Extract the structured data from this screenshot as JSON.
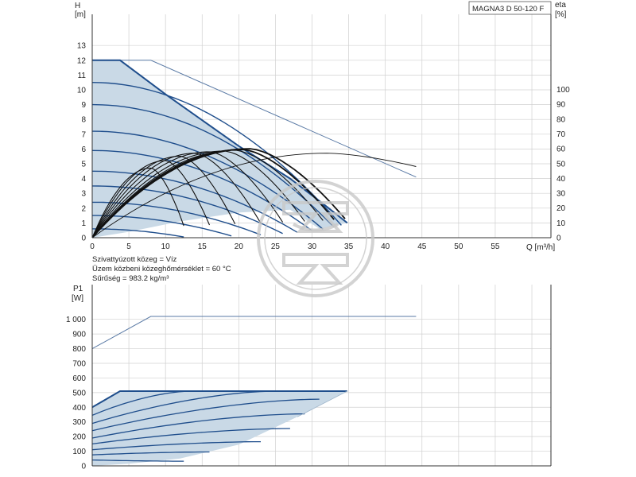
{
  "model": "MAGNA3 D 50-120 F",
  "info": {
    "line1": "Szivattyúzott közeg = Víz",
    "line2": "Üzem közbeni közeghőmérséklet = 60 °C",
    "line3": "Sűrűség = 983.2 kg/m³"
  },
  "colors": {
    "curve": "#1f4e8c",
    "area": "#c9d9e6",
    "eta": "#111111",
    "grid": "#d0d0d0",
    "watermark": "#c8c8c8"
  },
  "watermark": "seal-logo",
  "chart_data": [
    {
      "type": "line",
      "id": "head",
      "ylabel": "H",
      "yunit": "[m]",
      "y2label": "eta",
      "y2unit": "[%]",
      "xlabel": "Q [m³/h]",
      "xlim": [
        0,
        62
      ],
      "ylim": [
        0,
        13
      ],
      "y2lim": [
        0,
        100
      ],
      "xticks": [
        0,
        5,
        10,
        15,
        20,
        25,
        30,
        35,
        40,
        45,
        50,
        55,
        60
      ],
      "yticks": [
        0,
        1,
        2,
        3,
        4,
        5,
        6,
        7,
        8,
        9,
        10,
        11,
        12,
        13
      ],
      "y2ticks": [
        0,
        10,
        20,
        30,
        40,
        50,
        60,
        70,
        80,
        90,
        100
      ],
      "grid": true,
      "max_curve": [
        [
          0,
          12.0
        ],
        [
          3.8,
          12.0
        ],
        [
          10,
          9.7
        ],
        [
          20,
          6.2
        ],
        [
          27,
          4.0
        ],
        [
          32,
          2.1
        ],
        [
          34.8,
          1.0
        ]
      ],
      "lower_bound": [
        [
          0,
          0
        ],
        [
          5,
          0.4
        ],
        [
          12,
          1.1
        ],
        [
          20,
          1.7
        ],
        [
          27,
          1.9
        ],
        [
          31,
          0.6
        ]
      ],
      "control_curves": [
        {
          "h0": 10.5,
          "qmax": 34
        },
        {
          "h0": 9.0,
          "qmax": 33
        },
        {
          "h0": 7.2,
          "qmax": 31.5
        },
        {
          "h0": 5.9,
          "qmax": 30
        },
        {
          "h0": 4.5,
          "qmax": 28
        },
        {
          "h0": 3.5,
          "qmax": 26
        },
        {
          "h0": 2.4,
          "qmax": 23
        },
        {
          "h0": 1.5,
          "qmax": 19
        },
        {
          "h0": 0.6,
          "qmax": 12.5
        }
      ],
      "proportional_line": [
        [
          0,
          12.0
        ],
        [
          8,
          12.0
        ],
        [
          44.2,
          4.1
        ]
      ],
      "eta_curves": [
        {
          "qmax": 12.5,
          "etamax": 47,
          "qpeak": 8
        },
        {
          "qmax": 16,
          "etamax": 52,
          "qpeak": 10
        },
        {
          "qmax": 19.5,
          "etamax": 55,
          "qpeak": 12
        },
        {
          "qmax": 23,
          "etamax": 57,
          "qpeak": 14
        },
        {
          "qmax": 26,
          "etamax": 58,
          "qpeak": 16
        },
        {
          "qmax": 29,
          "etamax": 58.5,
          "qpeak": 18
        },
        {
          "qmax": 31.5,
          "etamax": 59,
          "qpeak": 19.5
        },
        {
          "qmax": 33,
          "etamax": 59.5,
          "qpeak": 20.5
        },
        {
          "qmax": 34.5,
          "etamax": 60,
          "qpeak": 21.5
        }
      ],
      "eta_max_line": {
        "qmax": 44.2,
        "qpeak": 32,
        "etamax": 57,
        "etaend": 48
      }
    },
    {
      "type": "line",
      "id": "power",
      "ylabel": "P1",
      "yunit": "[W]",
      "xlim": [
        0,
        62
      ],
      "ylim": [
        0,
        1000
      ],
      "yticks": [
        0,
        100,
        200,
        300,
        400,
        500,
        600,
        700,
        800,
        900,
        1000
      ],
      "yticklabels": [
        "0",
        "100",
        "200",
        "300",
        "400",
        "500",
        "600",
        "700",
        "800",
        "900",
        "1 000"
      ],
      "grid": true,
      "max_curve": [
        [
          0,
          400
        ],
        [
          3.8,
          510
        ],
        [
          34.8,
          510
        ]
      ],
      "boundary_right": [
        [
          34.8,
          510
        ],
        [
          28,
          335
        ],
        [
          20,
          145
        ],
        [
          12,
          50
        ],
        [
          5,
          15
        ],
        [
          0,
          0
        ]
      ],
      "proportional_line": [
        [
          0,
          800
        ],
        [
          8,
          1020
        ],
        [
          44.2,
          1020
        ]
      ],
      "control_curves": [
        {
          "p0": 345,
          "qend": 13.5,
          "pend": 510
        },
        {
          "p0": 290,
          "qend": 25,
          "pend": 510
        },
        {
          "p0": 240,
          "qend": 31,
          "pend": 455
        },
        {
          "p0": 190,
          "qend": 29,
          "pend": 355
        },
        {
          "p0": 150,
          "qend": 27,
          "pend": 255
        },
        {
          "p0": 110,
          "qend": 23,
          "pend": 165
        },
        {
          "p0": 75,
          "qend": 16,
          "pend": 95
        },
        {
          "p0": 40,
          "qend": 12.5,
          "pend": 32
        }
      ]
    }
  ]
}
